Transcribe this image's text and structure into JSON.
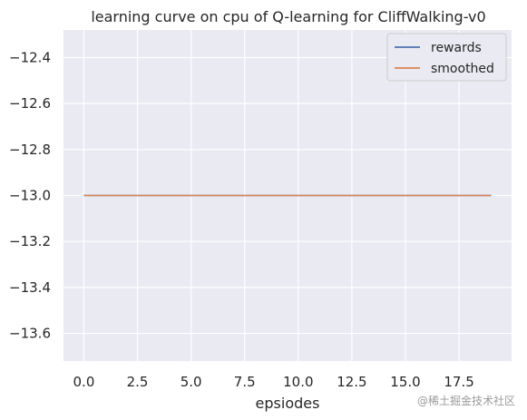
{
  "chart_data": {
    "type": "line",
    "title": "learning curve on cpu of Q-learning for CliffWalking-v0",
    "xlabel": "epsiodes",
    "ylabel": "",
    "x": [
      0,
      1,
      2,
      3,
      4,
      5,
      6,
      7,
      8,
      9,
      10,
      11,
      12,
      13,
      14,
      15,
      16,
      17,
      18,
      19
    ],
    "series": [
      {
        "name": "rewards",
        "color": "#4c72b0",
        "values": [
          -13,
          -13,
          -13,
          -13,
          -13,
          -13,
          -13,
          -13,
          -13,
          -13,
          -13,
          -13,
          -13,
          -13,
          -13,
          -13,
          -13,
          -13,
          -13,
          -13
        ]
      },
      {
        "name": "smoothed",
        "color": "#dd8452",
        "values": [
          -13,
          -13,
          -13,
          -13,
          -13,
          -13,
          -13,
          -13,
          -13,
          -13,
          -13,
          -13,
          -13,
          -13,
          -13,
          -13,
          -13,
          -13,
          -13,
          -13
        ]
      }
    ],
    "xticks": [
      "0.0",
      "2.5",
      "5.0",
      "7.5",
      "10.0",
      "12.5",
      "15.0",
      "17.5"
    ],
    "xtick_values": [
      0,
      2.5,
      5,
      7.5,
      10,
      12.5,
      15,
      17.5
    ],
    "yticks": [
      "−12.4",
      "−12.6",
      "−12.8",
      "−13.0",
      "−13.2",
      "−13.4",
      "−13.6"
    ],
    "ytick_values": [
      -12.4,
      -12.6,
      -12.8,
      -13.0,
      -13.2,
      -13.4,
      -13.6
    ],
    "xlim": [
      -0.95,
      19.95
    ],
    "ylim": [
      -13.72,
      -12.28
    ],
    "grid": true,
    "background": "#eaeaf2",
    "legend_position": "top-right"
  },
  "watermark": "@稀土掘金技术社区"
}
